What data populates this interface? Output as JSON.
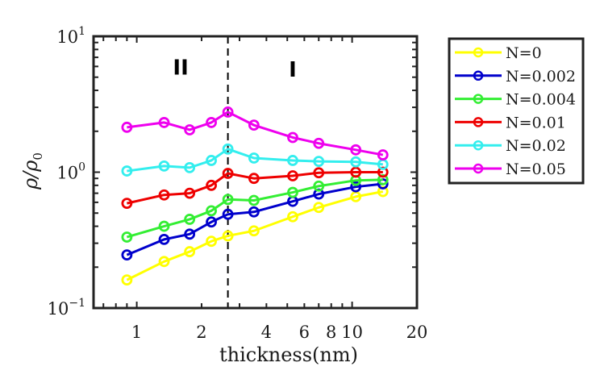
{
  "chart_data": {
    "type": "line",
    "title": "",
    "xlabel": "thickness(nm)",
    "ylabel": "ρ/ρ0",
    "xscale": "log",
    "yscale": "log",
    "xlim": [
      0.63,
      20
    ],
    "ylim": [
      0.1,
      10
    ],
    "x_ticks": [
      1,
      2,
      4,
      6,
      8,
      10,
      20
    ],
    "x_tick_labels": [
      "1",
      "2",
      "4",
      "6",
      "8",
      "10",
      "20"
    ],
    "y_ticks": [
      0.1,
      1,
      10
    ],
    "y_tick_labels": [
      {
        "base": "10",
        "exp": "−1"
      },
      {
        "base": "10",
        "exp": "0"
      },
      {
        "base": "10",
        "exp": "1"
      }
    ],
    "grid": false,
    "legend_position": "outside-top-right",
    "x": [
      0.9,
      1.34,
      1.76,
      2.22,
      2.65,
      3.5,
      5.3,
      7.0,
      10.4,
      13.9
    ],
    "series": [
      {
        "name": "N=0",
        "color": "#ffff00",
        "values": [
          0.161,
          0.22,
          0.26,
          0.31,
          0.34,
          0.37,
          0.47,
          0.55,
          0.66,
          0.72
        ]
      },
      {
        "name": "N=0.002",
        "color": "#0000cc",
        "values": [
          0.246,
          0.32,
          0.35,
          0.43,
          0.49,
          0.51,
          0.61,
          0.69,
          0.78,
          0.82
        ]
      },
      {
        "name": "N=0.004",
        "color": "#33ee33",
        "values": [
          0.333,
          0.4,
          0.45,
          0.52,
          0.63,
          0.62,
          0.71,
          0.79,
          0.87,
          0.88
        ]
      },
      {
        "name": "N=0.01",
        "color": "#ee0000",
        "values": [
          0.59,
          0.68,
          0.7,
          0.8,
          0.98,
          0.9,
          0.94,
          0.99,
          1.0,
          1.0
        ]
      },
      {
        "name": "N=0.02",
        "color": "#33eeee",
        "values": [
          1.02,
          1.11,
          1.08,
          1.22,
          1.48,
          1.27,
          1.22,
          1.2,
          1.19,
          1.14
        ]
      },
      {
        "name": "N=0.05",
        "color": "#ee00ee",
        "values": [
          2.14,
          2.32,
          2.05,
          2.32,
          2.77,
          2.22,
          1.8,
          1.63,
          1.46,
          1.34
        ]
      }
    ],
    "annotations": [
      {
        "type": "vline",
        "x": 2.65,
        "style": "dashed",
        "color": "#000000"
      },
      {
        "type": "text",
        "text": "II",
        "x": 1.6,
        "y": 6.0
      },
      {
        "type": "text",
        "text": "I",
        "x": 5.3,
        "y": 5.8
      }
    ]
  }
}
